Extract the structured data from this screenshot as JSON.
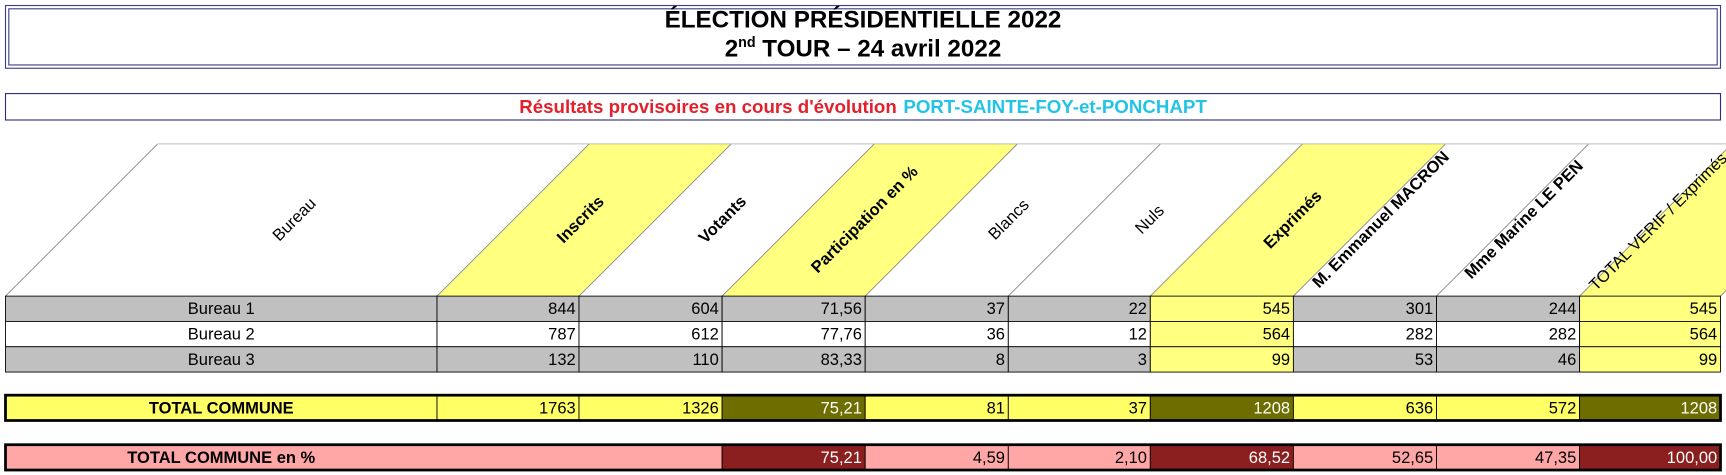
{
  "header": {
    "title": "ÉLECTION PRÉSIDENTIELLE 2022",
    "round_number": "2",
    "round_suffix": "nd",
    "round_text": "TOUR – 24 avril 2022"
  },
  "subtitle": {
    "status": "Résultats provisoires en cours d'évolution",
    "commune": "PORT-SAINTE-FOY-et-PONCHAPT"
  },
  "table": {
    "columns": [
      "Bureau",
      "Inscrits",
      "Votants",
      "Participation en %",
      "Blancs",
      "Nuls",
      "Exprimés",
      "M. Emmanuel MACRON",
      "Mme Marine LE PEN",
      "TOTAL VERIF  / Exprimés"
    ],
    "rows": [
      [
        "Bureau 1",
        "844",
        "604",
        "71,56",
        "37",
        "22",
        "545",
        "301",
        "244",
        "545"
      ],
      [
        "Bureau 2",
        "787",
        "612",
        "77,76",
        "36",
        "12",
        "564",
        "282",
        "282",
        "564"
      ],
      [
        "Bureau 3",
        "132",
        "110",
        "83,33",
        "8",
        "3",
        "99",
        "53",
        "46",
        "99"
      ]
    ],
    "total": [
      "TOTAL COMMUNE",
      "1763",
      "1326",
      "75,21",
      "81",
      "37",
      "1208",
      "636",
      "572",
      "1208"
    ],
    "percent": {
      "label": "TOTAL COMMUNE en %",
      "values": [
        "75,21",
        "4,59",
        "2,10",
        "68,52",
        "52,65",
        "47,35",
        "100,00"
      ]
    }
  }
}
